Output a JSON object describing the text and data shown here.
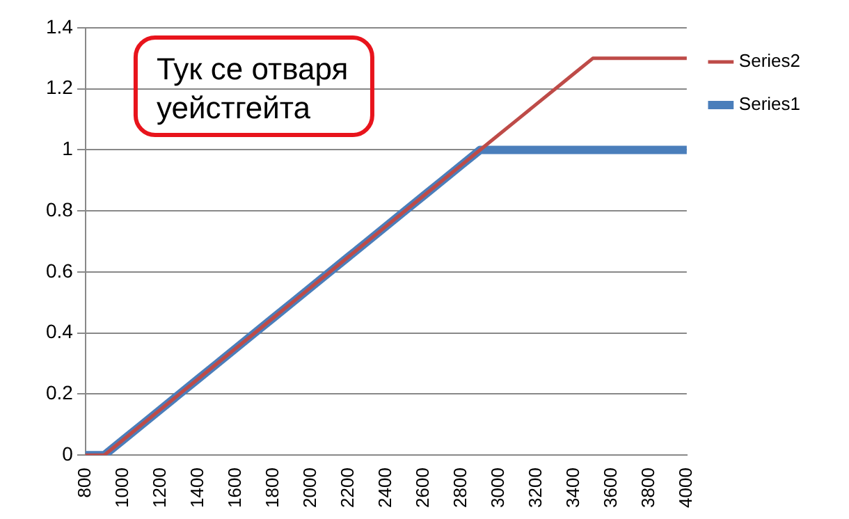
{
  "chart_data": {
    "type": "line",
    "categories": [
      "800",
      null,
      "1000",
      null,
      "1200",
      null,
      "1400",
      null,
      "1600",
      null,
      "1800",
      null,
      "2000",
      null,
      "2200",
      null,
      "2400",
      null,
      "2600",
      null,
      "2800",
      null,
      "3000",
      null,
      "3200",
      null,
      "3400",
      null,
      "3600",
      null,
      "3800",
      null,
      "4000"
    ],
    "series": [
      {
        "name": "Series1",
        "color": "#4a7ebb",
        "values": [
          0,
          0,
          0.05,
          0.1,
          0.15,
          0.2,
          0.25,
          0.3,
          0.35,
          0.4,
          0.45,
          0.5,
          0.55,
          0.6,
          0.65,
          0.7,
          0.75,
          0.8,
          0.85,
          0.9,
          0.95,
          1,
          1,
          1,
          1,
          1,
          1,
          1,
          1,
          1,
          1,
          1,
          1
        ]
      },
      {
        "name": "Series2",
        "color": "#be4b48",
        "values": [
          0,
          0,
          0.05,
          0.1,
          0.15,
          0.2,
          0.25,
          0.3,
          0.35,
          0.4,
          0.45,
          0.5,
          0.55,
          0.6,
          0.65,
          0.7,
          0.75,
          0.8,
          0.85,
          0.9,
          0.95,
          1,
          1.05,
          1.1,
          1.15,
          1.2,
          1.25,
          1.3,
          1.3,
          1.3,
          1.3,
          1.3,
          1.3
        ]
      }
    ],
    "ylim": [
      0,
      1.4
    ],
    "yticks": [
      0,
      0.2,
      0.4,
      0.6,
      0.8,
      1,
      1.2,
      1.4
    ],
    "grid": "y",
    "legend": "right",
    "marker": "none",
    "line_style": "solid",
    "annotations": [
      "Тук се отваря уейстгейта"
    ]
  }
}
